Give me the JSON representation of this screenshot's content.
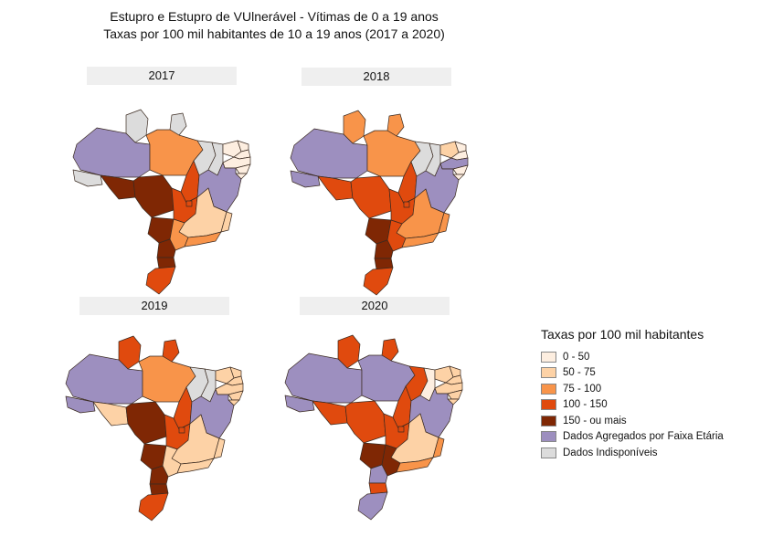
{
  "title_line1": "Estupro e Estupro de VUlnerável - Vítimas de 0 a 19 anos",
  "title_line2": "Taxas por 100 mil habitantes de 10 a 19 anos (2017 a 2020)",
  "maps": [
    {
      "year": "2017",
      "states": {
        "RR": "gray",
        "AP": "gray",
        "AM": "purple",
        "PA": "c75",
        "AC": "gray",
        "RO": "c150",
        "MT": "c150",
        "TO": "c100",
        "MA": "gray",
        "PI": "gray",
        "CE": "c0",
        "RN": "c0",
        "PB": "c0",
        "PE": "c0",
        "AL": "c0",
        "SE": "c0",
        "BA": "purple",
        "GO": "c100",
        "DF": "c100",
        "MS": "c150",
        "MG": "c50",
        "ES": "c50",
        "RJ": "c75",
        "SP": "c75",
        "PR": "c150",
        "SC": "c150",
        "RS": "c100"
      }
    },
    {
      "year": "2018",
      "states": {
        "RR": "c75",
        "AP": "c75",
        "AM": "purple",
        "PA": "c75",
        "AC": "purple",
        "RO": "c100",
        "MT": "c100",
        "TO": "c100",
        "MA": "gray",
        "PI": "gray",
        "CE": "c50",
        "RN": "c0",
        "PB": "c0",
        "PE": "purple",
        "AL": "c0",
        "SE": "c0",
        "BA": "purple",
        "GO": "c100",
        "DF": "c100",
        "MS": "c150",
        "MG": "c75",
        "ES": "c75",
        "RJ": "c75",
        "SP": "c100",
        "PR": "c150",
        "SC": "c150",
        "RS": "c100"
      }
    },
    {
      "year": "2019",
      "states": {
        "RR": "c100",
        "AP": "c100",
        "AM": "purple",
        "PA": "c75",
        "AC": "purple",
        "RO": "c50",
        "MT": "c150",
        "TO": "c100",
        "MA": "gray",
        "PI": "gray",
        "CE": "c50",
        "RN": "c50",
        "PB": "c50",
        "PE": "c50",
        "AL": "c50",
        "SE": "c50",
        "BA": "purple",
        "GO": "c100",
        "DF": "c100",
        "MS": "c150",
        "MG": "c50",
        "ES": "c50",
        "RJ": "c50",
        "SP": "c50",
        "PR": "c150",
        "SC": "c150",
        "RS": "c100"
      }
    },
    {
      "year": "2020",
      "states": {
        "RR": "c100",
        "AP": "c100",
        "AM": "purple",
        "PA": "purple",
        "AC": "purple",
        "RO": "c100",
        "MT": "c100",
        "TO": "c100",
        "MA": "c100",
        "PI": "c0",
        "CE": "c50",
        "RN": "c50",
        "PB": "c50",
        "PE": "c50",
        "AL": "c50",
        "SE": "c50",
        "BA": "purple",
        "GO": "c100",
        "DF": "c100",
        "MS": "c150",
        "MG": "c50",
        "ES": "c75",
        "RJ": "c75",
        "SP": "c150",
        "PR": "purple",
        "SC": "c100",
        "RS": "purple"
      }
    }
  ],
  "legend": {
    "title": "Taxas por 100 mil habitantes",
    "items": [
      {
        "key": "c0",
        "label": "0 - 50",
        "color": "#fdeee0"
      },
      {
        "key": "c50",
        "label": "50 - 75",
        "color": "#fdd2a6"
      },
      {
        "key": "c75",
        "label": "75 - 100",
        "color": "#f8944a"
      },
      {
        "key": "c100",
        "label": "100 - 150",
        "color": "#e04a0e"
      },
      {
        "key": "c150",
        "label": "150 -  ou mais",
        "color": "#7f2704"
      },
      {
        "key": "purple",
        "label": "Dados Agregados por Faixa Etária",
        "color": "#9d8fbf"
      },
      {
        "key": "gray",
        "label": "Dados Indisponíveis",
        "color": "#dcdcdc"
      }
    ]
  }
}
